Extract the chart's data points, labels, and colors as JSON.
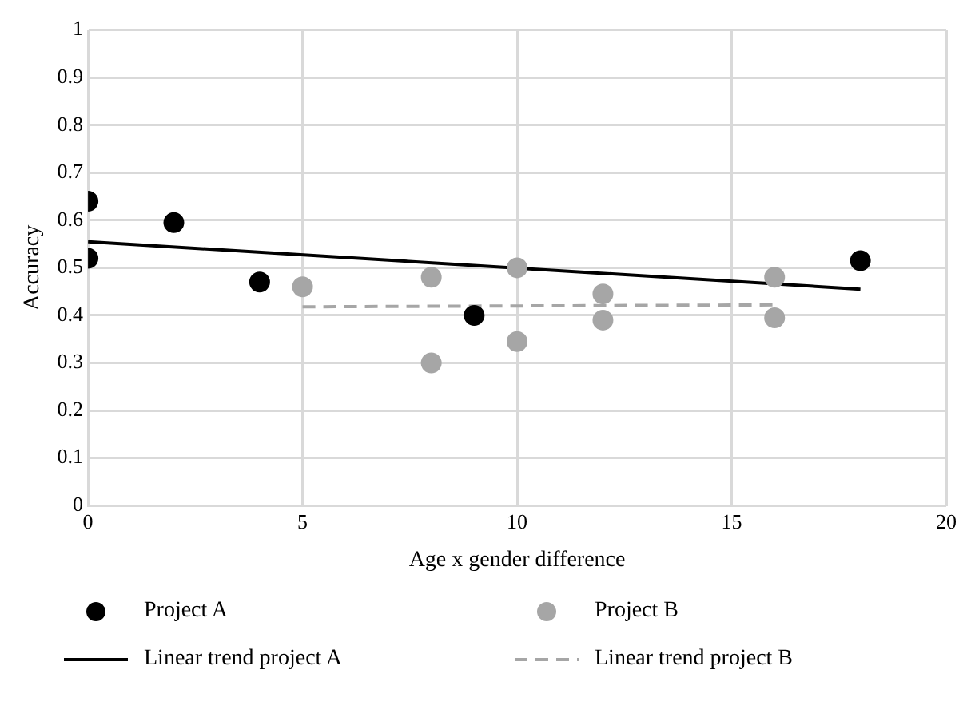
{
  "chart_data": {
    "type": "scatter",
    "xlabel": "Age x gender difference",
    "ylabel": "Accuracy",
    "xlim": [
      0,
      20
    ],
    "xticks": [
      0,
      5,
      10,
      15,
      20
    ],
    "ylim": [
      0,
      1
    ],
    "yticks": [
      0,
      0.1,
      0.2,
      0.3,
      0.4,
      0.5,
      0.6,
      0.7,
      0.8,
      0.9,
      1
    ],
    "grid": true,
    "legend": "bottom",
    "series": [
      {
        "type": "scatter",
        "name": "Project A",
        "color": "#000000",
        "marker": "circle",
        "x": [
          0,
          0,
          2,
          4,
          9,
          18
        ],
        "values": [
          0.64,
          0.52,
          0.595,
          0.47,
          0.4,
          0.515
        ]
      },
      {
        "type": "scatter",
        "name": "Project B",
        "color": "#a6a6a6",
        "marker": "circle",
        "x": [
          5,
          8,
          8,
          10,
          10,
          12,
          12,
          16,
          16
        ],
        "values": [
          0.46,
          0.48,
          0.3,
          0.5,
          0.345,
          0.445,
          0.39,
          0.48,
          0.395
        ]
      },
      {
        "type": "line",
        "name": "Linear trend project A",
        "color": "#000000",
        "line_style": "solid",
        "marker": "none",
        "x": [
          0,
          18
        ],
        "values": [
          0.555,
          0.455
        ]
      },
      {
        "type": "line",
        "name": "Linear trend project B",
        "color": "#a6a6a6",
        "line_style": "dashed",
        "marker": "none",
        "x": [
          5,
          16
        ],
        "values": [
          0.418,
          0.422
        ]
      }
    ]
  }
}
